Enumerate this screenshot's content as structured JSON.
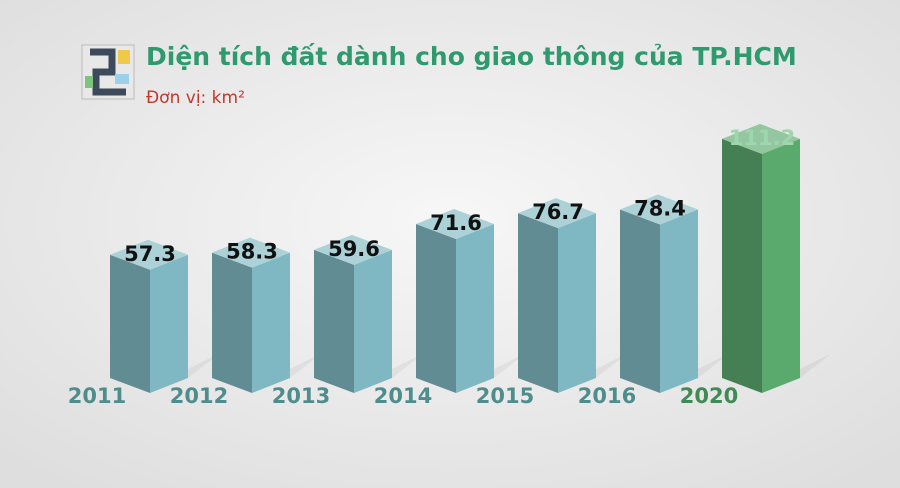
{
  "chart_data": {
    "type": "bar3d",
    "title": "Diện tích đất dành cho giao thông của TP.HCM",
    "subtitle": "Đơn vị: km²",
    "categories": [
      "2011",
      "2012",
      "2013",
      "2014",
      "2015",
      "2016",
      "2020"
    ],
    "values": [
      57.3,
      58.3,
      59.6,
      71.6,
      76.7,
      78.4,
      111.2
    ],
    "colors": [
      "#7fb8c2",
      "#7fb8c2",
      "#7fb8c2",
      "#7fb8c2",
      "#7fb8c2",
      "#7fb8c2",
      "#5aa96d"
    ],
    "label_colors": [
      "#4f8d8d",
      "#4f8d8d",
      "#4f8d8d",
      "#4f8d8d",
      "#4f8d8d",
      "#4f8d8d",
      "#3f8a55"
    ],
    "value_label_colors": [
      "#111111",
      "#111111",
      "#111111",
      "#111111",
      "#111111",
      "#111111",
      "#9fd6ad"
    ]
  }
}
